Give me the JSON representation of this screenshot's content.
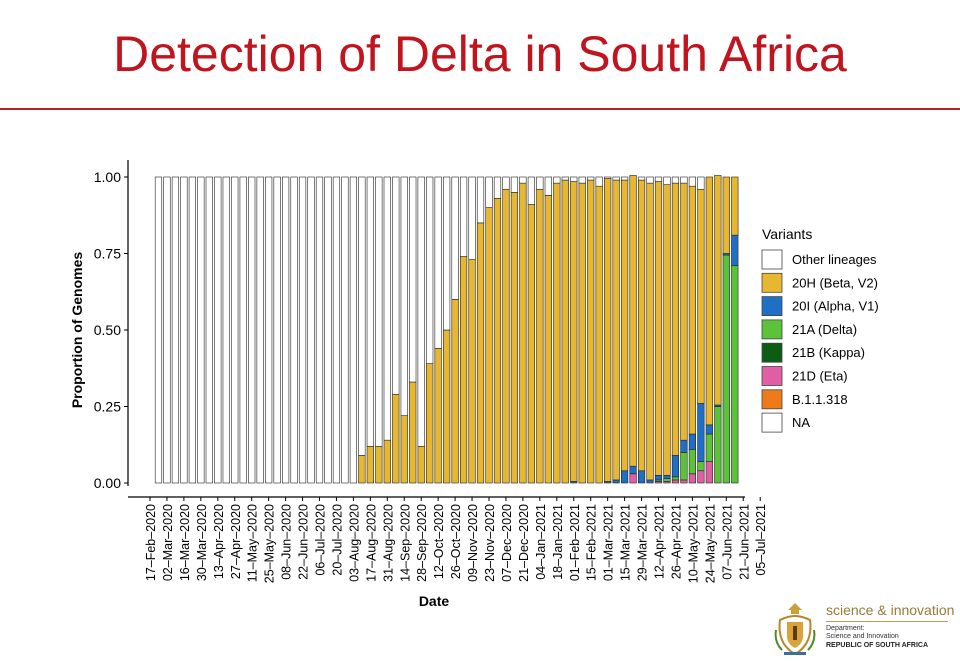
{
  "slide": {
    "title": "Detection of Delta in South Africa"
  },
  "chart_data": {
    "type": "bar",
    "stacked": true,
    "ylabel": "Proportion of Genomes",
    "xlabel": "Date",
    "ylim": [
      0,
      1
    ],
    "yticks": [
      "0.00",
      "0.25",
      "0.50",
      "0.75",
      "1.00"
    ],
    "x_tick_labels": [
      "17–Feb–2020",
      "02–Mar–2020",
      "16–Mar–2020",
      "30–Mar–2020",
      "13–Apr–2020",
      "27–Apr–2020",
      "11–May–2020",
      "25–May–2020",
      "08–Jun–2020",
      "22–Jun–2020",
      "06–Jul–2020",
      "20–Jul–2020",
      "03–Aug–2020",
      "17–Aug–2020",
      "31–Aug–2020",
      "14–Sep–2020",
      "28–Sep–2020",
      "12–Oct–2020",
      "26–Oct–2020",
      "09–Nov–2020",
      "23–Nov–2020",
      "07–Dec–2020",
      "21–Dec–2020",
      "04–Jan–2021",
      "18–Jan–2021",
      "01–Feb–2021",
      "15–Feb–2021",
      "01–Mar–2021",
      "15–Mar–2021",
      "29–Mar–2021",
      "12–Apr–2021",
      "26–Apr–2021",
      "10–May–2021",
      "24–May–2021",
      "07–Jun–2021",
      "21–Jun–2021",
      "05–Jul–2021"
    ],
    "legend": {
      "title": "Variants",
      "position": "right",
      "entries": [
        {
          "name": "Other lineages",
          "color": "#ffffff"
        },
        {
          "name": "20H (Beta, V2)",
          "color": "#e8b732"
        },
        {
          "name": "20I (Alpha, V1)",
          "color": "#1f6fc5"
        },
        {
          "name": "21A (Delta)",
          "color": "#5cc23a"
        },
        {
          "name": "21B (Kappa)",
          "color": "#0d5c14"
        },
        {
          "name": "21D (Eta)",
          "color": "#e05fa4"
        },
        {
          "name": "B.1.1.318",
          "color": "#ef7a1a"
        },
        {
          "name": "NA",
          "color": "#ffffff"
        }
      ]
    },
    "series_order": [
      "Other lineages",
      "20H (Beta, V2)",
      "20I (Alpha, V1)",
      "21A (Delta)",
      "21B (Kappa)",
      "21D (Eta)",
      "B.1.1.318",
      "NA"
    ],
    "week_start": "17–Feb–2020",
    "bars": [
      {
        "week": "24–Feb–2020",
        "beta": 0,
        "alpha": 0,
        "delta": 0,
        "eta": 0
      },
      {
        "week": "02–Mar–2020",
        "beta": 0,
        "alpha": 0,
        "delta": 0,
        "eta": 0
      },
      {
        "week": "09–Mar–2020",
        "beta": 0,
        "alpha": 0,
        "delta": 0,
        "eta": 0
      },
      {
        "week": "16–Mar–2020",
        "beta": 0,
        "alpha": 0,
        "delta": 0,
        "eta": 0
      },
      {
        "week": "23–Mar–2020",
        "beta": 0,
        "alpha": 0,
        "delta": 0,
        "eta": 0
      },
      {
        "week": "30–Mar–2020",
        "beta": 0,
        "alpha": 0,
        "delta": 0,
        "eta": 0
      },
      {
        "week": "06–Apr–2020",
        "beta": 0,
        "alpha": 0,
        "delta": 0,
        "eta": 0
      },
      {
        "week": "13–Apr–2020",
        "beta": 0,
        "alpha": 0,
        "delta": 0,
        "eta": 0
      },
      {
        "week": "20–Apr–2020",
        "beta": 0,
        "alpha": 0,
        "delta": 0,
        "eta": 0
      },
      {
        "week": "27–Apr–2020",
        "beta": 0,
        "alpha": 0,
        "delta": 0,
        "eta": 0
      },
      {
        "week": "04–May–2020",
        "beta": 0,
        "alpha": 0,
        "delta": 0,
        "eta": 0
      },
      {
        "week": "11–May–2020",
        "beta": 0,
        "alpha": 0,
        "delta": 0,
        "eta": 0
      },
      {
        "week": "18–May–2020",
        "beta": 0,
        "alpha": 0,
        "delta": 0,
        "eta": 0
      },
      {
        "week": "25–May–2020",
        "beta": 0,
        "alpha": 0,
        "delta": 0,
        "eta": 0
      },
      {
        "week": "01–Jun–2020",
        "beta": 0,
        "alpha": 0,
        "delta": 0,
        "eta": 0
      },
      {
        "week": "08–Jun–2020",
        "beta": 0,
        "alpha": 0,
        "delta": 0,
        "eta": 0
      },
      {
        "week": "15–Jun–2020",
        "beta": 0,
        "alpha": 0,
        "delta": 0,
        "eta": 0
      },
      {
        "week": "22–Jun–2020",
        "beta": 0,
        "alpha": 0,
        "delta": 0,
        "eta": 0
      },
      {
        "week": "29–Jun–2020",
        "beta": 0,
        "alpha": 0,
        "delta": 0,
        "eta": 0
      },
      {
        "week": "06–Jul–2020",
        "beta": 0,
        "alpha": 0,
        "delta": 0,
        "eta": 0
      },
      {
        "week": "13–Jul–2020",
        "beta": 0,
        "alpha": 0,
        "delta": 0,
        "eta": 0
      },
      {
        "week": "20–Jul–2020",
        "beta": 0,
        "alpha": 0,
        "delta": 0,
        "eta": 0
      },
      {
        "week": "27–Jul–2020",
        "beta": 0,
        "alpha": 0,
        "delta": 0,
        "eta": 0
      },
      {
        "week": "03–Aug–2020",
        "beta": 0,
        "alpha": 0,
        "delta": 0,
        "eta": 0
      },
      {
        "week": "10–Aug–2020",
        "beta": 0.09,
        "alpha": 0,
        "delta": 0,
        "eta": 0
      },
      {
        "week": "17–Aug–2020",
        "beta": 0.12,
        "alpha": 0,
        "delta": 0,
        "eta": 0
      },
      {
        "week": "24–Aug–2020",
        "beta": 0.12,
        "alpha": 0,
        "delta": 0,
        "eta": 0
      },
      {
        "week": "31–Aug–2020",
        "beta": 0.14,
        "alpha": 0,
        "delta": 0,
        "eta": 0
      },
      {
        "week": "07–Sep–2020",
        "beta": 0.29,
        "alpha": 0,
        "delta": 0,
        "eta": 0
      },
      {
        "week": "14–Sep–2020",
        "beta": 0.22,
        "alpha": 0,
        "delta": 0,
        "eta": 0
      },
      {
        "week": "21–Sep–2020",
        "beta": 0.33,
        "alpha": 0,
        "delta": 0,
        "eta": 0
      },
      {
        "week": "28–Sep–2020",
        "beta": 0.12,
        "alpha": 0,
        "delta": 0,
        "eta": 0
      },
      {
        "week": "05–Oct–2020",
        "beta": 0.39,
        "alpha": 0,
        "delta": 0,
        "eta": 0
      },
      {
        "week": "12–Oct–2020",
        "beta": 0.44,
        "alpha": 0,
        "delta": 0,
        "eta": 0
      },
      {
        "week": "19–Oct–2020",
        "beta": 0.5,
        "alpha": 0,
        "delta": 0,
        "eta": 0
      },
      {
        "week": "26–Oct–2020",
        "beta": 0.6,
        "alpha": 0,
        "delta": 0,
        "eta": 0
      },
      {
        "week": "02–Nov–2020",
        "beta": 0.74,
        "alpha": 0,
        "delta": 0,
        "eta": 0
      },
      {
        "week": "09–Nov–2020",
        "beta": 0.73,
        "alpha": 0,
        "delta": 0,
        "eta": 0
      },
      {
        "week": "16–Nov–2020",
        "beta": 0.85,
        "alpha": 0,
        "delta": 0,
        "eta": 0
      },
      {
        "week": "23–Nov–2020",
        "beta": 0.9,
        "alpha": 0,
        "delta": 0,
        "eta": 0
      },
      {
        "week": "30–Nov–2020",
        "beta": 0.93,
        "alpha": 0,
        "delta": 0,
        "eta": 0
      },
      {
        "week": "07–Dec–2020",
        "beta": 0.96,
        "alpha": 0,
        "delta": 0,
        "eta": 0
      },
      {
        "week": "14–Dec–2020",
        "beta": 0.95,
        "alpha": 0,
        "delta": 0,
        "eta": 0
      },
      {
        "week": "21–Dec–2020",
        "beta": 0.98,
        "alpha": 0,
        "delta": 0,
        "eta": 0
      },
      {
        "week": "28–Dec–2020",
        "beta": 0.91,
        "alpha": 0,
        "delta": 0,
        "eta": 0
      },
      {
        "week": "04–Jan–2021",
        "beta": 0.96,
        "alpha": 0,
        "delta": 0,
        "eta": 0
      },
      {
        "week": "11–Jan–2021",
        "beta": 0.94,
        "alpha": 0,
        "delta": 0,
        "eta": 0
      },
      {
        "week": "18–Jan–2021",
        "beta": 0.98,
        "alpha": 0,
        "delta": 0,
        "eta": 0
      },
      {
        "week": "25–Jan–2021",
        "beta": 0.99,
        "alpha": 0,
        "delta": 0,
        "eta": 0
      },
      {
        "week": "01–Feb–2021",
        "beta": 0.98,
        "alpha": 0.005,
        "delta": 0,
        "eta": 0
      },
      {
        "week": "08–Feb–2021",
        "beta": 0.98,
        "alpha": 0,
        "delta": 0,
        "eta": 0
      },
      {
        "week": "15–Feb–2021",
        "beta": 0.99,
        "alpha": 0,
        "delta": 0,
        "eta": 0
      },
      {
        "week": "22–Feb–2021",
        "beta": 0.97,
        "alpha": 0,
        "delta": 0,
        "eta": 0
      },
      {
        "week": "01–Mar–2021",
        "beta": 0.99,
        "alpha": 0.005,
        "delta": 0,
        "eta": 0
      },
      {
        "week": "08–Mar–2021",
        "beta": 0.98,
        "alpha": 0.01,
        "delta": 0,
        "eta": 0
      },
      {
        "week": "15–Mar–2021",
        "beta": 0.95,
        "alpha": 0.04,
        "delta": 0,
        "eta": 0
      },
      {
        "week": "22–Mar–2021",
        "beta": 0.95,
        "alpha": 0.025,
        "delta": 0,
        "eta": 0.03
      },
      {
        "week": "29–Mar–2021",
        "beta": 0.95,
        "alpha": 0.04,
        "delta": 0,
        "eta": 0
      },
      {
        "week": "05–Apr–2021",
        "beta": 0.97,
        "alpha": 0.01,
        "delta": 0,
        "eta": 0
      },
      {
        "week": "12–Apr–2021",
        "beta": 0.96,
        "alpha": 0.015,
        "delta": 0.005,
        "eta": 0.005
      },
      {
        "week": "19–Apr–2021",
        "beta": 0.95,
        "alpha": 0.01,
        "delta": 0.01,
        "eta": 0.005
      },
      {
        "week": "26–Apr–2021",
        "beta": 0.89,
        "alpha": 0.07,
        "delta": 0.01,
        "eta": 0.01
      },
      {
        "week": "03–May–2021",
        "beta": 0.84,
        "alpha": 0.04,
        "delta": 0.09,
        "eta": 0.01
      },
      {
        "week": "10–May–2021",
        "beta": 0.81,
        "alpha": 0.05,
        "delta": 0.08,
        "eta": 0.03
      },
      {
        "week": "17–May–2021",
        "beta": 0.7,
        "alpha": 0.19,
        "delta": 0.03,
        "eta": 0.04
      },
      {
        "week": "24–May–2021",
        "beta": 0.81,
        "alpha": 0.03,
        "delta": 0.09,
        "eta": 0.07
      },
      {
        "week": "31–May–2021",
        "beta": 0.75,
        "alpha": 0.005,
        "delta": 0.25,
        "eta": 0
      },
      {
        "week": "07–Jun–2021",
        "beta": 0.25,
        "alpha": 0.005,
        "delta": 0.745,
        "eta": 0
      },
      {
        "week": "14–Jun–2021",
        "beta": 0.19,
        "alpha": 0.1,
        "delta": 0.71,
        "eta": 0
      }
    ]
  },
  "footer": {
    "brand_name": "science & innovation",
    "department_line1": "Department:",
    "department_line2": "Science and Innovation",
    "country": "REPUBLIC OF SOUTH AFRICA",
    "emblem_icon": "coat-of-arms-icon"
  }
}
